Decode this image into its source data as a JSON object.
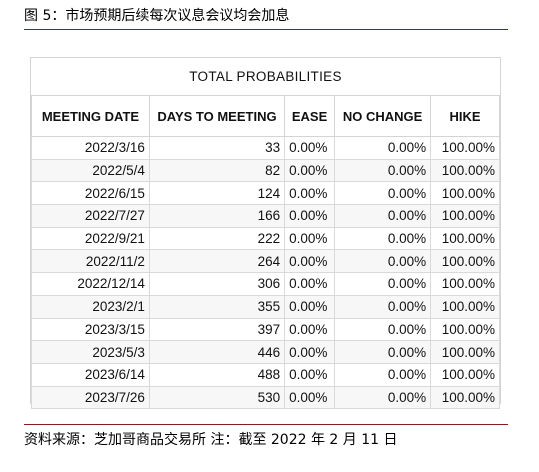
{
  "figure_title": "图 5：市场预期后续每次议息会议均会加息",
  "table": {
    "header": "TOTAL PROBABILITIES",
    "columns": [
      "MEETING DATE",
      "DAYS TO MEETING",
      "EASE",
      "NO CHANGE",
      "HIKE"
    ],
    "rows": [
      {
        "date": "2022/3/16",
        "days": "33",
        "ease": "0.00%",
        "no_change": "0.00%",
        "hike": "100.00%"
      },
      {
        "date": "2022/5/4",
        "days": "82",
        "ease": "0.00%",
        "no_change": "0.00%",
        "hike": "100.00%"
      },
      {
        "date": "2022/6/15",
        "days": "124",
        "ease": "0.00%",
        "no_change": "0.00%",
        "hike": "100.00%"
      },
      {
        "date": "2022/7/27",
        "days": "166",
        "ease": "0.00%",
        "no_change": "0.00%",
        "hike": "100.00%"
      },
      {
        "date": "2022/9/21",
        "days": "222",
        "ease": "0.00%",
        "no_change": "0.00%",
        "hike": "100.00%"
      },
      {
        "date": "2022/11/2",
        "days": "264",
        "ease": "0.00%",
        "no_change": "0.00%",
        "hike": "100.00%"
      },
      {
        "date": "2022/12/14",
        "days": "306",
        "ease": "0.00%",
        "no_change": "0.00%",
        "hike": "100.00%"
      },
      {
        "date": "2023/2/1",
        "days": "355",
        "ease": "0.00%",
        "no_change": "0.00%",
        "hike": "100.00%"
      },
      {
        "date": "2023/3/15",
        "days": "397",
        "ease": "0.00%",
        "no_change": "0.00%",
        "hike": "100.00%"
      },
      {
        "date": "2023/5/3",
        "days": "446",
        "ease": "0.00%",
        "no_change": "0.00%",
        "hike": "100.00%"
      },
      {
        "date": "2023/6/14",
        "days": "488",
        "ease": "0.00%",
        "no_change": "0.00%",
        "hike": "100.00%"
      },
      {
        "date": "2023/7/26",
        "days": "530",
        "ease": "0.00%",
        "no_change": "0.00%",
        "hike": "100.00%"
      }
    ]
  },
  "source_note": "资料来源：芝加哥商品交易所  注：截至 2022 年 2 月 11 日"
}
